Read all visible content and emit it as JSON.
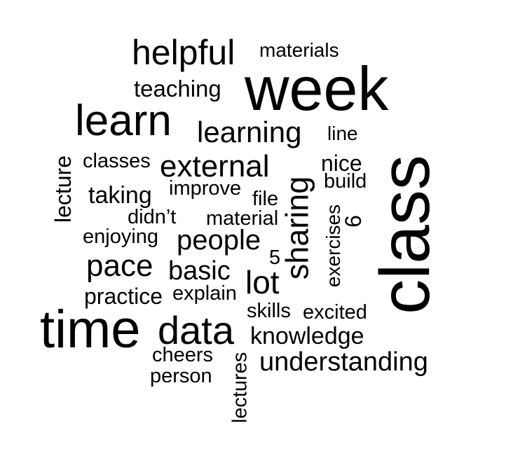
{
  "words": {
    "helpful": "helpful",
    "materials": "materials",
    "teaching": "teaching",
    "week": "week",
    "learn": "learn",
    "learning": "learning",
    "line": "line",
    "classes": "classes",
    "external": "external",
    "nice": "nice",
    "build": "build",
    "lecture": "lecture",
    "improve": "improve",
    "taking": "taking",
    "file": "file",
    "sharing": "sharing",
    "class": "class",
    "didnt": "didn’t",
    "material": "material",
    "six": "6",
    "exercises": "exercises",
    "enjoying": "enjoying",
    "people": "people",
    "five": "5",
    "pace": "pace",
    "basic": "basic",
    "lot": "lot",
    "practice": "practice",
    "explain": "explain",
    "skills": "skills",
    "excited": "excited",
    "time": "time",
    "data": "data",
    "knowledge": "knowledge",
    "cheers": "cheers",
    "understanding": "understanding",
    "person": "person",
    "lectures": "lectures"
  },
  "colors": {
    "text": "#000000",
    "background": "#ffffff"
  }
}
